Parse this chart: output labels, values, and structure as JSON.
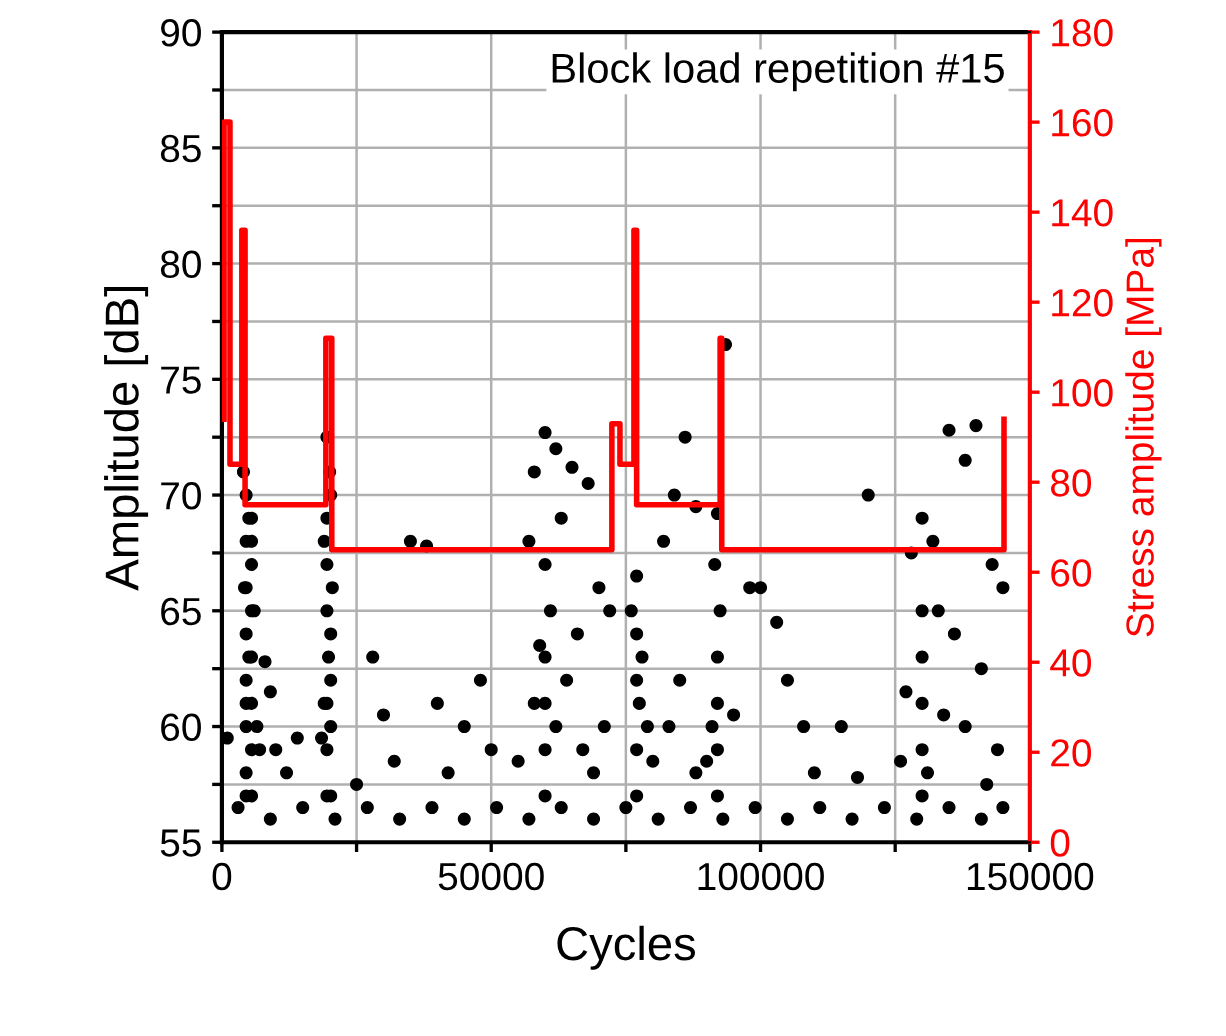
{
  "chart_data": {
    "type": "scatter",
    "title": "Block load repetition #15",
    "xlabel": "Cycles",
    "ylabel": "Amplitude [dB]",
    "y2label": "Stress amplitude [MPa]",
    "xlim": [
      0,
      150000
    ],
    "xticks": [
      0,
      {
        "value": 25000,
        "label": null
      },
      50000,
      {
        "value": 75000,
        "label": null
      },
      100000,
      {
        "value": 125000,
        "label": null
      },
      150000
    ],
    "ylim": [
      55,
      90
    ],
    "yticks": [
      55,
      {
        "value": 57.5,
        "label": null
      },
      60,
      {
        "value": 62.5,
        "label": null
      },
      65,
      {
        "value": 67.5,
        "label": null
      },
      70,
      {
        "value": 72.5,
        "label": null
      },
      75,
      {
        "value": 77.5,
        "label": null
      },
      80,
      {
        "value": 82.5,
        "label": null
      },
      85,
      {
        "value": 87.5,
        "label": null
      },
      90
    ],
    "y2lim": [
      0,
      180
    ],
    "y2ticks": [
      0,
      20,
      40,
      60,
      80,
      100,
      120,
      140,
      160,
      180
    ],
    "grid": true,
    "marker": "circle",
    "series": [
      {
        "color": "#000000",
        "x": [
          1000,
          4000,
          4500,
          5000,
          5500,
          4200,
          6000,
          5000,
          4500,
          6500,
          7000,
          8000,
          9000,
          10000,
          12000,
          14000,
          4500,
          4500,
          4500,
          4500,
          4500,
          4500,
          4500,
          5500,
          5500,
          5500,
          5500,
          5500,
          5500,
          5500,
          19500,
          20000,
          19000,
          20500,
          19800,
          19000,
          18500,
          19500,
          19500,
          19500,
          19500,
          19500,
          19500,
          20200,
          20200,
          20200,
          20200,
          20200,
          35000,
          38000,
          28000,
          30000,
          40000,
          45000,
          48000,
          32000,
          25000,
          42000,
          50000,
          60000,
          62000,
          58000,
          65000,
          68000,
          63000,
          57000,
          60000,
          61000,
          59000,
          64000,
          66000,
          70000,
          72000,
          58000,
          62000,
          67000,
          55000,
          69000,
          71000,
          60000,
          60000,
          60000,
          60000,
          77000,
          76000,
          78000,
          77500,
          79000,
          80000,
          82000,
          84000,
          86000,
          88000,
          85000,
          83000,
          88000,
          77000,
          77000,
          77000,
          77000,
          93500,
          92000,
          91500,
          92500,
          92000,
          91000,
          90000,
          95000,
          98000,
          100000,
          105000,
          108000,
          110000,
          103000,
          115000,
          118000,
          92000,
          92000,
          92000,
          140000,
          135000,
          138000,
          120000,
          130000,
          132000,
          128000,
          143000,
          145000,
          133000,
          136000,
          130000,
          141000,
          127000,
          134000,
          138000,
          144000,
          126000,
          131000,
          142000,
          130000,
          130000,
          130000,
          130000,
          3000,
          9000,
          15000,
          21000,
          27000,
          33000,
          39000,
          45000,
          51000,
          57000,
          63000,
          69000,
          75000,
          81000,
          87000,
          93000,
          99000,
          105000,
          111000,
          117000,
          123000,
          129000,
          135000,
          141000,
          145000
        ],
        "values": [
          59.5,
          71,
          70,
          69,
          68,
          66,
          65,
          63,
          61,
          60,
          59,
          62.8,
          61.5,
          59,
          58,
          59.5,
          57,
          58,
          60,
          62,
          64,
          66,
          68,
          57,
          59,
          61,
          63,
          65,
          67,
          69,
          72.5,
          71,
          68,
          66,
          63,
          61,
          59.5,
          57,
          59,
          61,
          65,
          67,
          69,
          57,
          60,
          62,
          64,
          70,
          68,
          67.8,
          63,
          60.5,
          61,
          60,
          62,
          58.5,
          57.5,
          58,
          59,
          72.7,
          72,
          71,
          71.2,
          70.5,
          69,
          68,
          67,
          65,
          63.5,
          62,
          64,
          66,
          65,
          61,
          60,
          59,
          58.5,
          58,
          60,
          57,
          59,
          61,
          63,
          66.5,
          65,
          63,
          61,
          60,
          58.5,
          68,
          70,
          72.5,
          69.5,
          62,
          60,
          58,
          57,
          59,
          62,
          64,
          76.5,
          69.2,
          67,
          65,
          63,
          60,
          58.5,
          60.5,
          66,
          66,
          62,
          60,
          58,
          64.5,
          60,
          57.8,
          57,
          59,
          61,
          73,
          72.8,
          71.5,
          70,
          69,
          68,
          67.5,
          67,
          66,
          65,
          64,
          63,
          62.5,
          61.5,
          60.5,
          60,
          59,
          58.5,
          58,
          57.5,
          57,
          59,
          61,
          65,
          56.5,
          56,
          56.5,
          56,
          56.5,
          56,
          56.5,
          56,
          56.5,
          56,
          56.5,
          56,
          56.5,
          56,
          56.5,
          56,
          56.5,
          56,
          56.5,
          56,
          56.5,
          56,
          56.5,
          56,
          56.5
        ]
      },
      {
        "type": "line",
        "axis": "y2",
        "color": "#ff0000",
        "marker": "none",
        "x": [
          400,
          400,
          1500,
          1500,
          3700,
          3700,
          4300,
          4300,
          19300,
          19300,
          20400,
          20400,
          72400,
          72400,
          73900,
          73900,
          76500,
          76500,
          77000,
          77000,
          92500,
          92500,
          92800,
          92800,
          145200,
          145200
        ],
        "values": [
          94,
          160,
          160,
          84,
          84,
          136,
          136,
          75,
          75,
          112,
          112,
          65,
          65,
          93,
          93,
          84,
          84,
          136,
          136,
          75,
          75,
          112,
          112,
          65,
          65,
          94
        ]
      }
    ]
  }
}
